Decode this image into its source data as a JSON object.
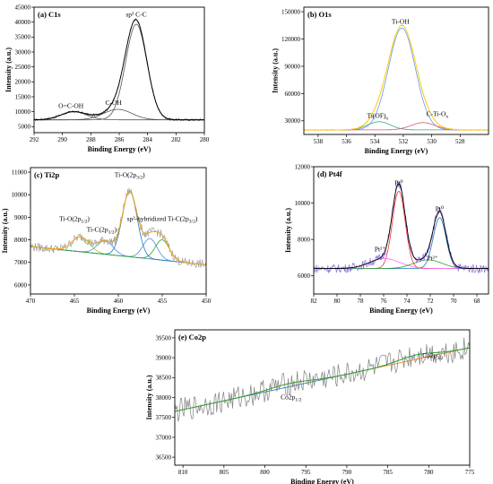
{
  "chart_data": [
    {
      "type": "line",
      "panel_label": "(a) C1s",
      "xlabel": "Binding Energy (eV)",
      "ylabel": "Intensity (a.u.)",
      "xlim": [
        292,
        280
      ],
      "ylim": [
        3000,
        45000
      ],
      "x_ticks": [
        292,
        290,
        288,
        286,
        284,
        282,
        280
      ],
      "y_ticks": [
        5000,
        10000,
        15000,
        20000,
        25000,
        30000,
        35000,
        40000,
        45000
      ],
      "baseline": 7300,
      "colors": {
        "raw": "#3a3a3a",
        "fit": "#000000"
      },
      "peaks": [
        {
          "label": "sp³ C-C",
          "center": 284.8,
          "height": 32000,
          "width": 0.75
        },
        {
          "label": "C-OH",
          "center": 286.1,
          "height": 3500,
          "width": 1.0
        },
        {
          "label": "O=C-OH",
          "center": 289.2,
          "height": 2700,
          "width": 0.9
        }
      ],
      "annotations": [
        {
          "text": "sp³ C-C",
          "x": 284.8,
          "y": 41800
        },
        {
          "text": "C-OH",
          "x": 286.4,
          "y": 12300
        },
        {
          "text": "O=C-OH",
          "x": 289.4,
          "y": 11300
        }
      ]
    },
    {
      "type": "line",
      "panel_label": "(b) O1s",
      "xlabel": "Binding Energy (eV)",
      "ylabel": "Intensity (a.u.)",
      "xlim": [
        539,
        526
      ],
      "ylim": [
        15000,
        155000
      ],
      "x_ticks": [
        538,
        536,
        534,
        532,
        530,
        528
      ],
      "y_ticks": [
        30000,
        60000,
        90000,
        120000,
        150000
      ],
      "baseline": 20000,
      "colors": {
        "raw": "#ff6a00",
        "fit": "#ffd400"
      },
      "peaks": [
        {
          "label": "Ti-OH",
          "center": 532.1,
          "height": 112000,
          "width": 0.95,
          "color": "#6699ff"
        },
        {
          "label": "Ti(OF)x",
          "center": 533.7,
          "height": 9000,
          "width": 0.8,
          "color": "#3aa876"
        },
        {
          "label": "C-Ti-Ox",
          "center": 530.6,
          "height": 8000,
          "width": 0.85,
          "color": "#e2556a"
        }
      ],
      "annotations": [
        {
          "text": "Ti-OH",
          "x": 532.2,
          "y": 137000
        },
        {
          "text": "Ti(OF)x",
          "x": 533.8,
          "y": 33000
        },
        {
          "text": "C-Ti-Ox",
          "x": 529.6,
          "y": 35000
        }
      ]
    },
    {
      "type": "line",
      "panel_label": "(c) Ti2p",
      "xlabel": "Binding Energy (eV)",
      "ylabel": "Intensity (a.u.)",
      "xlim": [
        470,
        450
      ],
      "ylim": [
        5600,
        11200
      ],
      "x_ticks": [
        470,
        465,
        460,
        455,
        450
      ],
      "y_ticks": [
        6000,
        7000,
        8000,
        9000,
        10000,
        11000
      ],
      "baseline_start": 7700,
      "baseline_end": 6900,
      "colors": {
        "raw": "#9e9e9e",
        "fit": "#ffa500"
      },
      "peaks": [
        {
          "label": "Ti-O(2p1/2)",
          "center": 464.3,
          "height": 650,
          "width": 1.0,
          "color": "#9acd32"
        },
        {
          "label": "Ti-C(2p1/2)",
          "center": 461.5,
          "height": 600,
          "width": 0.9,
          "color": "#4a90d9"
        },
        {
          "label": "Ti-O(2p3/2)",
          "center": 458.7,
          "height": 2900,
          "width": 0.85,
          "color": "#1f77b4"
        },
        {
          "label": "sp²-hybridized Ti-C(2p3/2)",
          "center": 456.4,
          "height": 900,
          "width": 0.8,
          "color": "#4a90d9"
        },
        {
          "label": "sp²-hybridized Ti-C(2p3/2)",
          "center": 455.0,
          "height": 900,
          "width": 0.8,
          "color": "#2ca02c"
        }
      ],
      "annotations": [
        {
          "text": "Ti-O(2p1/2)",
          "x": 465.0,
          "y": 8830
        },
        {
          "text": "Ti-C(2p1/2)",
          "x": 461.9,
          "y": 8370
        },
        {
          "text": "Ti-O(2p3/2)",
          "x": 458.7,
          "y": 10790
        },
        {
          "text": "sp²-hybridized Ti-C(2p3/2)",
          "x": 455.0,
          "y": 8830
        }
      ]
    },
    {
      "type": "line",
      "panel_label": "(d) Pt4f",
      "xlabel": "Binding Energy (eV)",
      "ylabel": "Intensity (a.u.)",
      "xlim": [
        82,
        67
      ],
      "ylim": [
        5000,
        12000
      ],
      "x_ticks": [
        82,
        80,
        78,
        76,
        74,
        72,
        70,
        68
      ],
      "y_ticks": [
        6000,
        8000,
        10000,
        12000
      ],
      "baseline": 6400,
      "colors": {
        "raw": "#9370db",
        "fit": "#000000"
      },
      "peaks": [
        {
          "label": "Pt⁰",
          "center": 74.7,
          "height": 4250,
          "width": 0.55,
          "color": "#e33"
        },
        {
          "label": "Pt²⁺",
          "center": 75.9,
          "height": 550,
          "width": 1.3,
          "color": "#ff66ff"
        },
        {
          "label": "Pt⁰",
          "center": 71.2,
          "height": 2800,
          "width": 0.55,
          "color": "#1f77b4"
        },
        {
          "label": "Pt²⁺",
          "center": 72.2,
          "height": 480,
          "width": 1.2,
          "color": "#2ca02c"
        }
      ],
      "annotations": [
        {
          "text": "Pt⁰",
          "x": 74.7,
          "y": 11000
        },
        {
          "text": "Pt²⁺",
          "x": 76.3,
          "y": 7350
        },
        {
          "text": "Pt⁰",
          "x": 71.2,
          "y": 9550
        },
        {
          "text": "Pt²⁺",
          "x": 71.8,
          "y": 6850
        }
      ]
    },
    {
      "type": "line",
      "panel_label": "(e) Co2p",
      "xlabel": "Binding Energy (eV)",
      "ylabel": "Intensity (a.u.)",
      "xlim": [
        811,
        775
      ],
      "ylim": [
        36300,
        39700
      ],
      "x_ticks": [
        810,
        805,
        800,
        795,
        790,
        785,
        780,
        775
      ],
      "y_ticks": [
        36500,
        37000,
        37500,
        38000,
        38500,
        39000,
        39500
      ],
      "baseline_start": 37650,
      "baseline_end": 39250,
      "colors": {
        "raw": "#808080",
        "fit": "#2ca02c"
      },
      "peaks": [
        {
          "label": "Co2p1/2",
          "center": 797.0,
          "height": 80,
          "width": 2.5,
          "color": "#ff7f0e"
        },
        {
          "label": "Co2p3/2",
          "center": 781.5,
          "height": 110,
          "width": 2.2,
          "color": "#1f77b4"
        }
      ],
      "annotations": [
        {
          "text": "Co2p1/2",
          "x": 796.8,
          "y": 37950
        },
        {
          "text": "Co2p3/2",
          "x": 779.5,
          "y": 39000
        }
      ]
    }
  ]
}
